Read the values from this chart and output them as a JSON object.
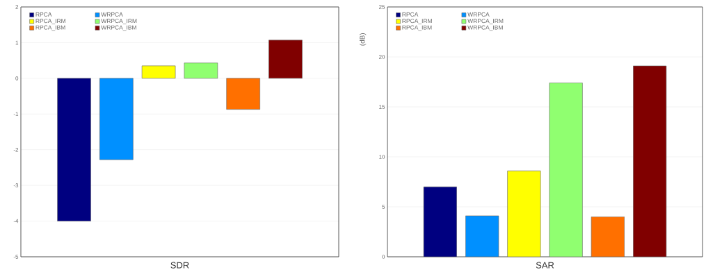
{
  "chart_data": [
    {
      "type": "bar",
      "categories": [
        "SDR"
      ],
      "ylim": [
        -5,
        2
      ],
      "yticks": [
        -5,
        -4,
        -3,
        -2,
        -1,
        0,
        1,
        2
      ],
      "grid": "y",
      "legend": "top left",
      "series": [
        {
          "name": "RPCA",
          "color": "#000080",
          "values": [
            -4.0
          ]
        },
        {
          "name": "WRPCA",
          "color": "#0090ff",
          "values": [
            -2.28
          ]
        },
        {
          "name": "RPCA_IRM",
          "color": "#ffff00",
          "values": [
            0.35
          ]
        },
        {
          "name": "WRPCA_IRM",
          "color": "#90ff70",
          "values": [
            0.43
          ]
        },
        {
          "name": "RPCA_IBM",
          "color": "#ff7000",
          "values": [
            -0.87
          ]
        },
        {
          "name": "WRPCA_IBM",
          "color": "#800000",
          "values": [
            1.07
          ]
        }
      ]
    },
    {
      "type": "bar",
      "categories": [
        "SAR"
      ],
      "ylabel": "(dB)",
      "ylim": [
        0,
        25
      ],
      "yticks": [
        0,
        5,
        10,
        15,
        20,
        25
      ],
      "grid": "y",
      "legend": "top left",
      "series": [
        {
          "name": "RPCA",
          "color": "#000080",
          "values": [
            7.0
          ]
        },
        {
          "name": "WRPCA",
          "color": "#0090ff",
          "values": [
            4.1
          ]
        },
        {
          "name": "RPCA_IRM",
          "color": "#ffff00",
          "values": [
            8.6
          ]
        },
        {
          "name": "WRPCA_IRM",
          "color": "#90ff70",
          "values": [
            17.4
          ]
        },
        {
          "name": "RPCA_IBM",
          "color": "#ff7000",
          "values": [
            4.0
          ]
        },
        {
          "name": "WRPCA_IBM",
          "color": "#800000",
          "values": [
            19.1
          ]
        }
      ]
    }
  ]
}
